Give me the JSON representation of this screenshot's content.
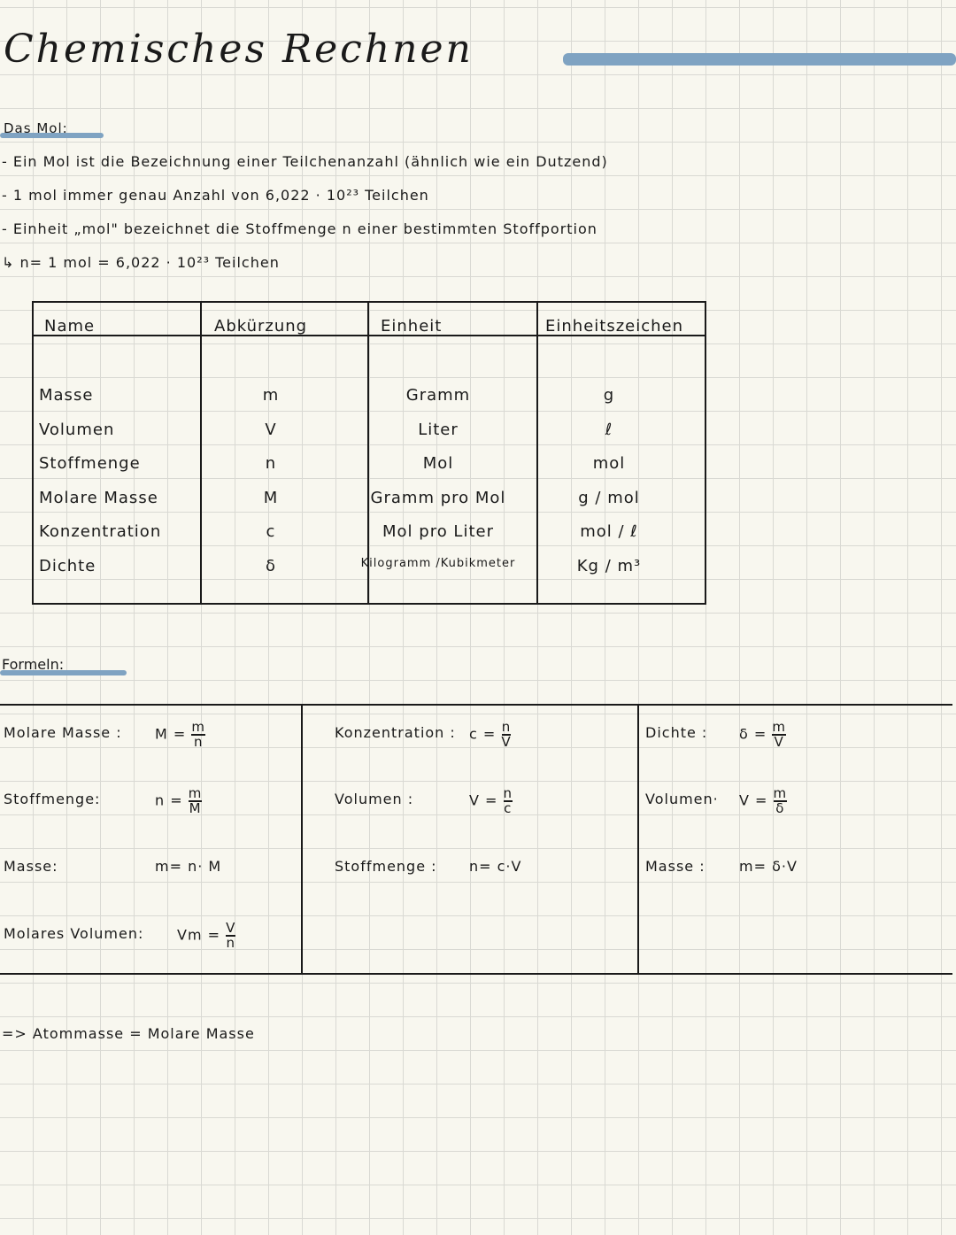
{
  "title": "Chemisches Rechnen",
  "accent": "#7fa3c2",
  "mol_section": {
    "heading": "Das Mol:",
    "lines": [
      "- Ein Mol ist die Bezeichnung einer Teilchenanzahl (ähnlich wie ein Dutzend)",
      "- 1 mol immer genau Anzahl von 6,022 · 10²³ Teilchen",
      "- Einheit „mol\" bezeichnet die Stoffmenge n einer bestimmten Stoffportion",
      "↳ n= 1 mol = 6,022 · 10²³ Teilchen"
    ]
  },
  "table": {
    "headers": [
      "Name",
      "Abkürzung",
      "Einheit",
      "Einheitszeichen"
    ],
    "rows": [
      [
        "Masse",
        "m",
        "Gramm",
        "g"
      ],
      [
        "Volumen",
        "V",
        "Liter",
        "ℓ"
      ],
      [
        "Stoffmenge",
        "n",
        "Mol",
        "mol"
      ],
      [
        "Molare Masse",
        "M",
        "Gramm pro Mol",
        "g / mol"
      ],
      [
        "Konzentration",
        "c",
        "Mol pro Liter",
        "mol / ℓ"
      ],
      [
        "Dichte",
        "δ",
        "Kilogramm /Kubikmeter",
        "Kg / m³"
      ]
    ]
  },
  "formulas": {
    "heading": "Formeln:",
    "col1": [
      {
        "label": "Molare Masse :",
        "lhs": "M =",
        "num": "m",
        "den": "n"
      },
      {
        "label": "Stoffmenge:",
        "lhs": "n =",
        "num": "m",
        "den": "M"
      },
      {
        "label": "Masse:",
        "lhs": "m= n· M"
      },
      {
        "label": "Molares Volumen:",
        "lhs": "Vm =",
        "num": "V",
        "den": "n"
      }
    ],
    "col2": [
      {
        "label": "Konzentration :",
        "lhs": "c =",
        "num": "n",
        "den": "V"
      },
      {
        "label": "Volumen :",
        "lhs": "V =",
        "num": "n",
        "den": "c"
      },
      {
        "label": "Stoffmenge :",
        "lhs": "n= c·V"
      }
    ],
    "col3": [
      {
        "label": "Dichte :",
        "lhs": "δ =",
        "num": "m",
        "den": "V"
      },
      {
        "label": "Volumen·",
        "lhs": "V =",
        "num": "m",
        "den": "δ"
      },
      {
        "label": "Masse :",
        "lhs": "m= δ·V"
      }
    ]
  },
  "conclusion": "=> Atommasse = Molare Masse"
}
